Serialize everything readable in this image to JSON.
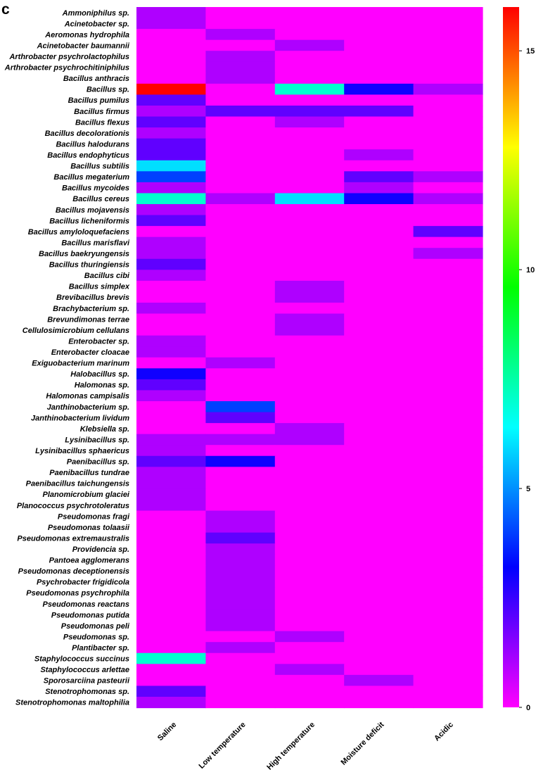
{
  "panel_label": "c",
  "chart_data": {
    "type": "heatmap",
    "title": "",
    "columns": [
      "Saline",
      "Low temperature",
      "High temperature",
      "Moisture deficit",
      "Acidic"
    ],
    "rows": [
      "Ammoniphilus sp.",
      "Acinetobacter sp.",
      "Aeromonas hydrophila",
      "Acinetobacter baumannii",
      "Arthrobacter psychrolactophilus",
      "Arthrobacter psychrochitiniphilus",
      "Bacillus anthracis",
      "Bacillus sp.",
      "Bacillus pumilus",
      "Bacillus firmus",
      "Bacillus flexus",
      "Bacillus decolorationis",
      "Bacillus halodurans",
      "Bacillus endophyticus",
      "Bacillus subtilis",
      "Bacillus megaterium",
      "Bacillus mycoides",
      "Bacillus cereus",
      "Bacillus mojavensis",
      "Bacillus licheniformis",
      "Bacillus amyloloquefaciens",
      "Bacillus marisflavi",
      "Bacillus baekryungensis",
      "Bacillus thuringiensis",
      "Bacillus cibi",
      "Bacillus simplex",
      "Brevibacillus brevis",
      "Brachybacterium sp.",
      "Brevundimonas terrae",
      "Cellulosimicrobium cellulans",
      "Enterobacter sp.",
      "Enterobacter cloacae",
      "Exiguobacterium marinum",
      "Halobacillus sp.",
      "Halomonas sp.",
      "Halomonas campisalis",
      "Janthinobacterium sp.",
      "Janthinobacterium lividum",
      "Klebsiella sp.",
      "Lysinibacillus sp.",
      "Lysinibacillus sphaericus",
      "Paenibacillus sp.",
      "Paenibacillus tundrae",
      "Paenibacillus taichungensis",
      "Planomicrobium glaciei",
      "Planococcus psychrotoleratus",
      "Pseudomonas fragi",
      "Pseudomonas tolaasii",
      "Pseudomonas extremaustralis",
      "Providencia sp.",
      "Pantoea agglomerans",
      "Pseudomonas deceptionensis",
      "Psychrobacter frigidicola",
      "Pseudomonas psychrophila",
      "Pseudomonas reactans",
      "Pseudomonas putida",
      "Pseudomonas peli",
      "Pseudomonas sp.",
      "Plantibacter sp.",
      "Staphylococcus succinus",
      "Staphylococcus arlettae",
      "Sporosarciina pasteurii",
      "Stenotrophomonas sp.",
      "Stenotrophomonas maltophilia"
    ],
    "values": [
      [
        1,
        0,
        0,
        0,
        0
      ],
      [
        1,
        0,
        0,
        0,
        0
      ],
      [
        0,
        1,
        0,
        0,
        0
      ],
      [
        0,
        0,
        1,
        0,
        0
      ],
      [
        0,
        1,
        0,
        0,
        0
      ],
      [
        0,
        1,
        0,
        0,
        0
      ],
      [
        0,
        1,
        0,
        0,
        0
      ],
      [
        16,
        0,
        7,
        3,
        1
      ],
      [
        2,
        0,
        0,
        0,
        0
      ],
      [
        1,
        2,
        2,
        2,
        0
      ],
      [
        2,
        0,
        1,
        0,
        0
      ],
      [
        1,
        0,
        0,
        0,
        0
      ],
      [
        2,
        0,
        0,
        0,
        0
      ],
      [
        2,
        0,
        0,
        1,
        0
      ],
      [
        6,
        0,
        0,
        0,
        0
      ],
      [
        4,
        0,
        0,
        2,
        1
      ],
      [
        1,
        0,
        0,
        1,
        0
      ],
      [
        7,
        1,
        6,
        3,
        1
      ],
      [
        1,
        0,
        0,
        0,
        0
      ],
      [
        2,
        0,
        0,
        0,
        0
      ],
      [
        0,
        0,
        0,
        0,
        2
      ],
      [
        1,
        0,
        0,
        0,
        0
      ],
      [
        1,
        0,
        0,
        0,
        1
      ],
      [
        2,
        0,
        0,
        0,
        0
      ],
      [
        1,
        0,
        0,
        0,
        0
      ],
      [
        0,
        0,
        1,
        0,
        0
      ],
      [
        0,
        0,
        1,
        0,
        0
      ],
      [
        1,
        0,
        0,
        0,
        0
      ],
      [
        0,
        0,
        1,
        0,
        0
      ],
      [
        0,
        0,
        1,
        0,
        0
      ],
      [
        1,
        0,
        0,
        0,
        0
      ],
      [
        1,
        0,
        0,
        0,
        0
      ],
      [
        0,
        1,
        0,
        0,
        0
      ],
      [
        3,
        0,
        0,
        0,
        0
      ],
      [
        2,
        0,
        0,
        0,
        0
      ],
      [
        1,
        0,
        0,
        0,
        0
      ],
      [
        0,
        4,
        0,
        0,
        0
      ],
      [
        0,
        2,
        0,
        0,
        0
      ],
      [
        0,
        0,
        1,
        0,
        0
      ],
      [
        1,
        1,
        1,
        0,
        0
      ],
      [
        1,
        0,
        0,
        0,
        0
      ],
      [
        2,
        3,
        0,
        0,
        0
      ],
      [
        1,
        0,
        0,
        0,
        0
      ],
      [
        1,
        0,
        0,
        0,
        0
      ],
      [
        1,
        0,
        0,
        0,
        0
      ],
      [
        1,
        0,
        0,
        0,
        0
      ],
      [
        0,
        1,
        0,
        0,
        0
      ],
      [
        0,
        1,
        0,
        0,
        0
      ],
      [
        0,
        2,
        0,
        0,
        0
      ],
      [
        0,
        1,
        0,
        0,
        0
      ],
      [
        0,
        1,
        0,
        0,
        0
      ],
      [
        0,
        1,
        0,
        0,
        0
      ],
      [
        0,
        1,
        0,
        0,
        0
      ],
      [
        0,
        1,
        0,
        0,
        0
      ],
      [
        0,
        1,
        0,
        0,
        0
      ],
      [
        0,
        1,
        0,
        0,
        0
      ],
      [
        0,
        1,
        0,
        0,
        0
      ],
      [
        0,
        0,
        1,
        0,
        0
      ],
      [
        0,
        1,
        0,
        0,
        0
      ],
      [
        7,
        0,
        0,
        0,
        0
      ],
      [
        0,
        0,
        1,
        0,
        0
      ],
      [
        0,
        0,
        0,
        1,
        0
      ],
      [
        2,
        0,
        0,
        0,
        0
      ],
      [
        1,
        0,
        0,
        0,
        0
      ]
    ],
    "colorbar": {
      "min": 0,
      "max": 16,
      "ticks": [
        0,
        5,
        10,
        15
      ],
      "colormap": "rainbow (magenta → blue → cyan → green → yellow → red)",
      "stops": [
        "#ff00ff",
        "#0000ff",
        "#00ffff",
        "#00ff00",
        "#ffff00",
        "#ff0000"
      ]
    },
    "grid": false,
    "legend_position": "right"
  }
}
